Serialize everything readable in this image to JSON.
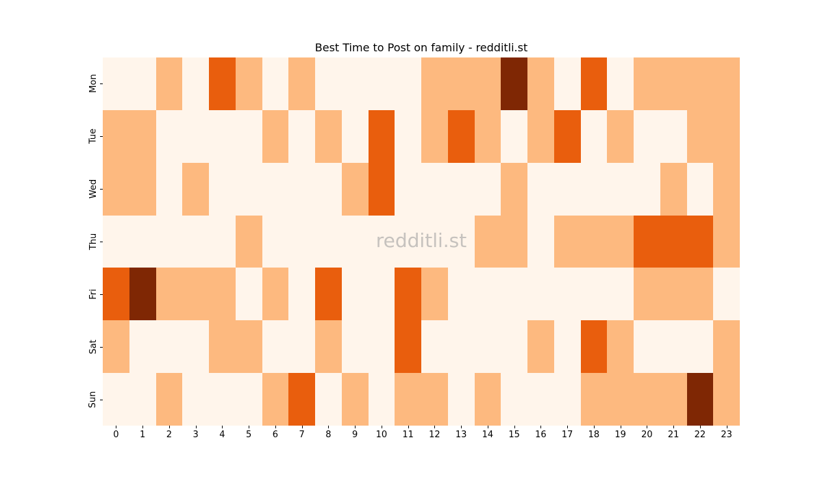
{
  "chart_data": {
    "type": "heatmap",
    "title": "Best Time to Post on family - redditli.st",
    "xlabel": "",
    "ylabel": "",
    "x_categories": [
      "0",
      "1",
      "2",
      "3",
      "4",
      "5",
      "6",
      "7",
      "8",
      "9",
      "10",
      "11",
      "12",
      "13",
      "14",
      "15",
      "16",
      "17",
      "18",
      "19",
      "20",
      "21",
      "22",
      "23"
    ],
    "y_categories": [
      "Mon",
      "Tue",
      "Wed",
      "Thu",
      "Fri",
      "Sat",
      "Sun"
    ],
    "colormap": "Oranges",
    "level_colors": [
      "#fff5eb",
      "#fdb97f",
      "#e95e0d",
      "#7f2704"
    ],
    "values": [
      [
        0,
        0,
        1,
        0,
        2,
        1,
        0,
        1,
        0,
        0,
        0,
        0,
        1,
        1,
        1,
        3,
        1,
        0,
        2,
        0,
        1,
        1,
        1,
        1
      ],
      [
        1,
        1,
        0,
        0,
        0,
        0,
        1,
        0,
        1,
        0,
        2,
        0,
        1,
        2,
        1,
        0,
        1,
        2,
        0,
        1,
        0,
        0,
        1,
        1
      ],
      [
        1,
        1,
        0,
        1,
        0,
        0,
        0,
        0,
        0,
        1,
        2,
        0,
        0,
        0,
        0,
        1,
        0,
        0,
        0,
        0,
        0,
        1,
        0,
        1
      ],
      [
        0,
        0,
        0,
        0,
        0,
        1,
        0,
        0,
        0,
        0,
        0,
        0,
        0,
        0,
        1,
        1,
        0,
        1,
        1,
        1,
        2,
        2,
        2,
        1
      ],
      [
        2,
        3,
        1,
        1,
        1,
        0,
        1,
        0,
        2,
        0,
        0,
        2,
        1,
        0,
        0,
        0,
        0,
        0,
        0,
        0,
        1,
        1,
        1,
        0
      ],
      [
        1,
        0,
        0,
        0,
        1,
        1,
        0,
        0,
        1,
        0,
        0,
        2,
        0,
        0,
        0,
        0,
        1,
        0,
        2,
        1,
        0,
        0,
        0,
        1
      ],
      [
        0,
        0,
        1,
        0,
        0,
        0,
        1,
        2,
        0,
        1,
        0,
        1,
        1,
        0,
        1,
        0,
        0,
        0,
        1,
        1,
        1,
        1,
        3,
        1
      ]
    ],
    "colorbar": false,
    "grid": false,
    "watermark": "redditli.st"
  }
}
